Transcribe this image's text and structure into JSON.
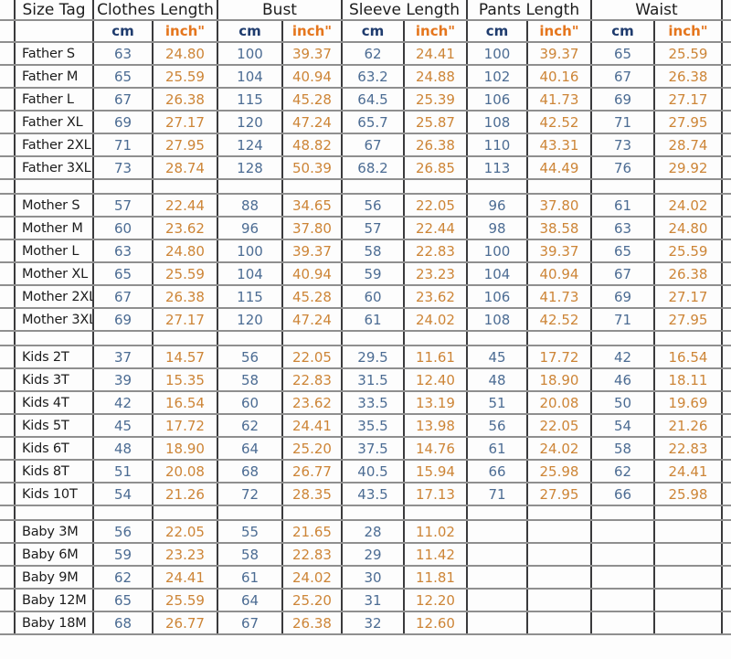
{
  "table": {
    "headers": [
      "Size Tag",
      "Clothes Length",
      "Bust",
      "Sleeve Length",
      "Pants Length",
      "Waist"
    ],
    "units": [
      "",
      "cm",
      "inch\"",
      "cm",
      "inch\"",
      "cm",
      "inch\"",
      "cm",
      "inch\"",
      "cm",
      "inch\""
    ]
  },
  "chart_data": {
    "type": "table",
    "columns": [
      "Size Tag",
      "Clothes Length cm",
      "Clothes Length inch\"",
      "Bust cm",
      "Bust inch\"",
      "Sleeve Length cm",
      "Sleeve Length inch\"",
      "Pants Length cm",
      "Pants Length inch\"",
      "Waist cm",
      "Waist inch\""
    ],
    "row_groups": [
      {
        "group": "Father",
        "rows": [
          [
            "Father S",
            "63",
            "24.80",
            "100",
            "39.37",
            "62",
            "24.41",
            "100",
            "39.37",
            "65",
            "25.59"
          ],
          [
            "Father M",
            "65",
            "25.59",
            "104",
            "40.94",
            "63.2",
            "24.88",
            "102",
            "40.16",
            "67",
            "26.38"
          ],
          [
            "Father L",
            "67",
            "26.38",
            "115",
            "45.28",
            "64.5",
            "25.39",
            "106",
            "41.73",
            "69",
            "27.17"
          ],
          [
            "Father XL",
            "69",
            "27.17",
            "120",
            "47.24",
            "65.7",
            "25.87",
            "108",
            "42.52",
            "71",
            "27.95"
          ],
          [
            "Father 2XL",
            "71",
            "27.95",
            "124",
            "48.82",
            "67",
            "26.38",
            "110",
            "43.31",
            "73",
            "28.74"
          ],
          [
            "Father 3XL",
            "73",
            "28.74",
            "128",
            "50.39",
            "68.2",
            "26.85",
            "113",
            "44.49",
            "76",
            "29.92"
          ]
        ]
      },
      {
        "group": "Mother",
        "rows": [
          [
            "Mother S",
            "57",
            "22.44",
            "88",
            "34.65",
            "56",
            "22.05",
            "96",
            "37.80",
            "61",
            "24.02"
          ],
          [
            "Mother M",
            "60",
            "23.62",
            "96",
            "37.80",
            "57",
            "22.44",
            "98",
            "38.58",
            "63",
            "24.80"
          ],
          [
            "Mother L",
            "63",
            "24.80",
            "100",
            "39.37",
            "58",
            "22.83",
            "100",
            "39.37",
            "65",
            "25.59"
          ],
          [
            "Mother XL",
            "65",
            "25.59",
            "104",
            "40.94",
            "59",
            "23.23",
            "104",
            "40.94",
            "67",
            "26.38"
          ],
          [
            "Mother 2XL",
            "67",
            "26.38",
            "115",
            "45.28",
            "60",
            "23.62",
            "106",
            "41.73",
            "69",
            "27.17"
          ],
          [
            "Mother 3XL",
            "69",
            "27.17",
            "120",
            "47.24",
            "61",
            "24.02",
            "108",
            "42.52",
            "71",
            "27.95"
          ]
        ]
      },
      {
        "group": "Kids",
        "rows": [
          [
            "Kids 2T",
            "37",
            "14.57",
            "56",
            "22.05",
            "29.5",
            "11.61",
            "45",
            "17.72",
            "42",
            "16.54"
          ],
          [
            "Kids 3T",
            "39",
            "15.35",
            "58",
            "22.83",
            "31.5",
            "12.40",
            "48",
            "18.90",
            "46",
            "18.11"
          ],
          [
            "Kids 4T",
            "42",
            "16.54",
            "60",
            "23.62",
            "33.5",
            "13.19",
            "51",
            "20.08",
            "50",
            "19.69"
          ],
          [
            "Kids 5T",
            "45",
            "17.72",
            "62",
            "24.41",
            "35.5",
            "13.98",
            "56",
            "22.05",
            "54",
            "21.26"
          ],
          [
            "Kids 6T",
            "48",
            "18.90",
            "64",
            "25.20",
            "37.5",
            "14.76",
            "61",
            "24.02",
            "58",
            "22.83"
          ],
          [
            "Kids 8T",
            "51",
            "20.08",
            "68",
            "26.77",
            "40.5",
            "15.94",
            "66",
            "25.98",
            "62",
            "24.41"
          ],
          [
            "Kids 10T",
            "54",
            "21.26",
            "72",
            "28.35",
            "43.5",
            "17.13",
            "71",
            "27.95",
            "66",
            "25.98"
          ]
        ]
      },
      {
        "group": "Baby",
        "rows": [
          [
            "Baby 3M",
            "56",
            "22.05",
            "55",
            "21.65",
            "28",
            "11.02",
            "",
            "",
            "",
            ""
          ],
          [
            "Baby 6M",
            "59",
            "23.23",
            "58",
            "22.83",
            "29",
            "11.42",
            "",
            "",
            "",
            ""
          ],
          [
            "Baby 9M",
            "62",
            "24.41",
            "61",
            "24.02",
            "30",
            "11.81",
            "",
            "",
            "",
            ""
          ],
          [
            "Baby 12M",
            "65",
            "25.59",
            "64",
            "25.20",
            "31",
            "12.20",
            "",
            "",
            "",
            ""
          ],
          [
            "Baby 18M",
            "68",
            "26.77",
            "67",
            "26.38",
            "32",
            "12.60",
            "",
            "",
            "",
            ""
          ]
        ]
      }
    ]
  },
  "colors": {
    "background": "#fdfdfd",
    "header_text": "#1c1c1c",
    "cm_header": "#1f3c6e",
    "inch_header": "#e5761d",
    "cm_value": "#4c6c93",
    "inch_value": "#cd8537",
    "grid_vertical": "#3a3a3c",
    "grid_horizontal": "#8f8f8f"
  }
}
